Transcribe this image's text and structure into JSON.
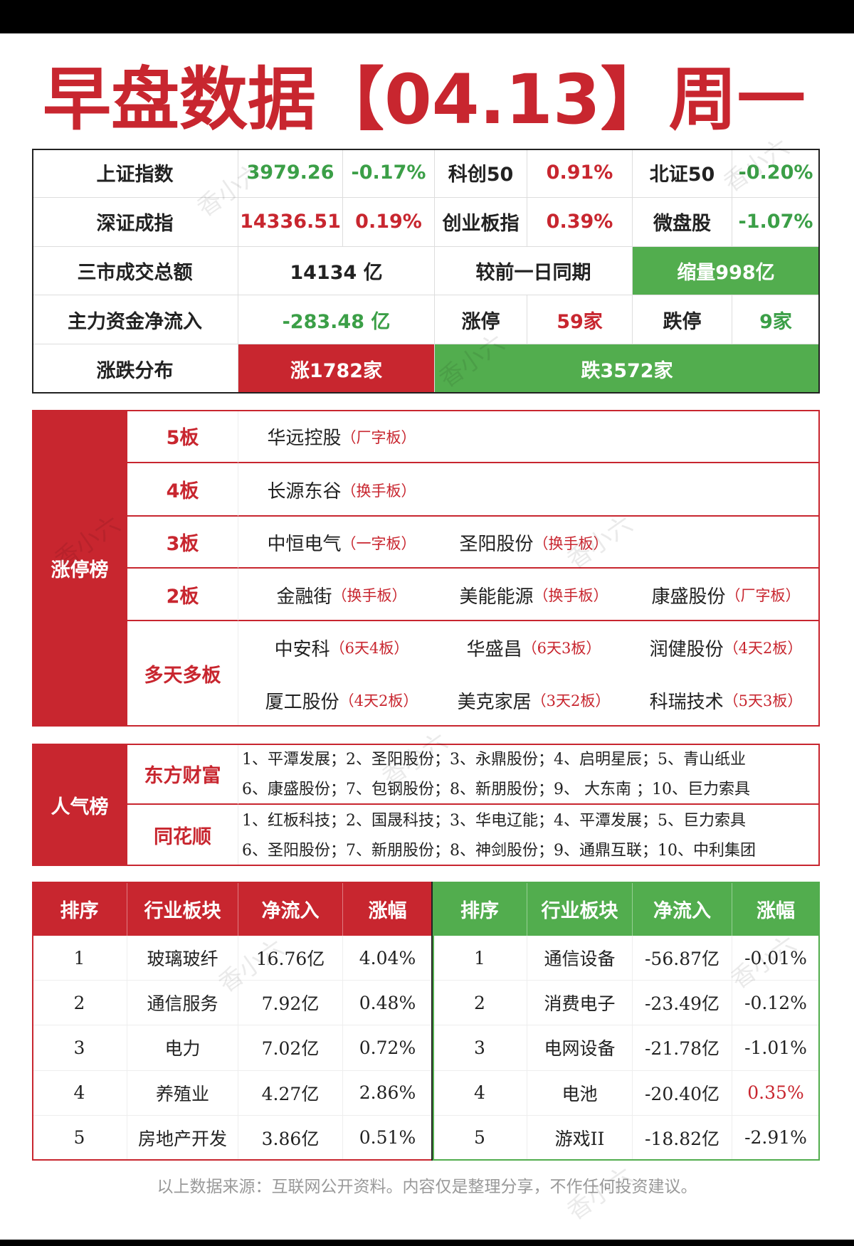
{
  "header": {
    "title": "早盘数据【04.13】周一"
  },
  "market": {
    "rows": [
      [
        "上证指数",
        "3979.26",
        "-0.17%",
        "科创50",
        "0.91%",
        "北证50",
        "-0.20%"
      ],
      [
        "深证成指",
        "14336.51",
        "0.19%",
        "创业板指",
        "0.39%",
        "微盘股",
        "-1.07%"
      ],
      [
        "三市成交总额",
        "14134 亿",
        "较前一日同期",
        "缩量998亿"
      ],
      [
        "主力资金净流入",
        "-283.48 亿",
        "涨停",
        "59家",
        "跌停",
        "9家"
      ],
      [
        "涨跌分布",
        "涨1782家",
        "跌3572家"
      ]
    ]
  },
  "limit_up": {
    "label": "涨停榜",
    "rows": [
      {
        "level": "5板",
        "stocks": [
          {
            "name": "华远控股",
            "tag": "（厂字板）"
          }
        ]
      },
      {
        "level": "4板",
        "stocks": [
          {
            "name": "长源东谷",
            "tag": "（换手板）"
          }
        ]
      },
      {
        "level": "3板",
        "stocks": [
          {
            "name": "中恒电气",
            "tag": "（一字板）"
          },
          {
            "name": "圣阳股份",
            "tag": "（换手板）"
          }
        ]
      },
      {
        "level": "2板",
        "stocks": [
          {
            "name": "金融街",
            "tag": "（换手板）"
          },
          {
            "name": "美能能源",
            "tag": "（换手板）"
          },
          {
            "name": "康盛股份",
            "tag": "（厂字板）"
          }
        ]
      },
      {
        "level": "多天多板",
        "stocks": [
          {
            "name": "中安科",
            "tag": "（6天4板）"
          },
          {
            "name": "华盛昌",
            "tag": "（6天3板）"
          },
          {
            "name": "润健股份",
            "tag": "（4天2板）"
          },
          {
            "name": "厦工股份",
            "tag": "（4天2板）"
          },
          {
            "name": "美克家居",
            "tag": "（3天2板）"
          },
          {
            "name": "科瑞技术",
            "tag": "（5天3板）"
          }
        ]
      }
    ]
  },
  "popularity": {
    "label": "人气榜",
    "sources": [
      {
        "name": "东方财富",
        "lines": [
          "1、平潭发展；2、圣阳股份；3、永鼎股份；4、启明星辰；5、青山纸业",
          "6、康盛股份；7、包钢股份；8、新朋股份；9、 大东南 ；10、巨力索具"
        ]
      },
      {
        "name": "同花顺",
        "lines": [
          "1、红板科技；2、国晟科技；3、华电辽能；4、平潭发展；5、巨力索具",
          "6、圣阳股份；7、新朋股份；8、神剑股份；9、通鼎互联；10、中利集团"
        ]
      }
    ]
  },
  "sectors": {
    "headers": [
      "排序",
      "行业板块",
      "净流入",
      "涨幅"
    ],
    "inflow": [
      [
        "1",
        "玻璃玻纤",
        "16.76亿",
        "4.04%"
      ],
      [
        "2",
        "通信服务",
        "7.92亿",
        "0.48%"
      ],
      [
        "3",
        "电力",
        "7.02亿",
        "0.72%"
      ],
      [
        "4",
        "养殖业",
        "4.27亿",
        "2.86%"
      ],
      [
        "5",
        "房地产开发",
        "3.86亿",
        "0.51%"
      ]
    ],
    "outflow": [
      [
        "1",
        "通信设备",
        "-56.87亿",
        "-0.01%"
      ],
      [
        "2",
        "消费电子",
        "-23.49亿",
        "-0.12%"
      ],
      [
        "3",
        "电网设备",
        "-21.78亿",
        "-1.01%"
      ],
      [
        "4",
        "电池",
        "-20.40亿",
        "0.35%"
      ],
      [
        "5",
        "游戏II",
        "-18.82亿",
        "-2.91%"
      ]
    ]
  },
  "footer": {
    "note": "以上数据来源：互联网公开资料。内容仅是整理分享，不作任何投资建议。"
  },
  "watermark": "香小六"
}
